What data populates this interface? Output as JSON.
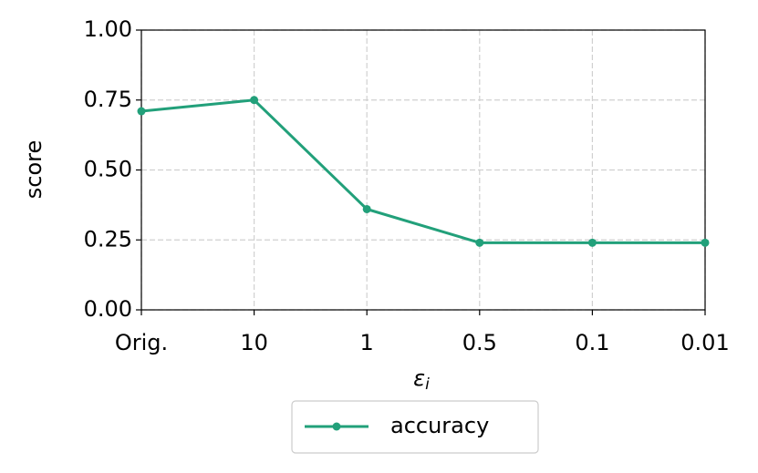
{
  "chart_data": {
    "type": "line",
    "ylabel": "score",
    "xlabel": "ε",
    "xlabel_subscript": "i",
    "categories": [
      "Orig.",
      "10",
      "1",
      "0.5",
      "0.1",
      "0.01"
    ],
    "series": [
      {
        "name": "accuracy",
        "color": "#22a07a",
        "values": [
          0.71,
          0.75,
          0.36,
          0.24,
          0.24,
          0.24
        ]
      }
    ],
    "ylim": [
      0,
      1
    ],
    "yticks": [
      {
        "value": 0,
        "label": "0.00"
      },
      {
        "value": 0.25,
        "label": "0.25"
      },
      {
        "value": 0.5,
        "label": "0.50"
      },
      {
        "value": 0.75,
        "label": "0.75"
      },
      {
        "value": 1,
        "label": "1.00"
      }
    ],
    "grid": true,
    "legend": "below"
  }
}
